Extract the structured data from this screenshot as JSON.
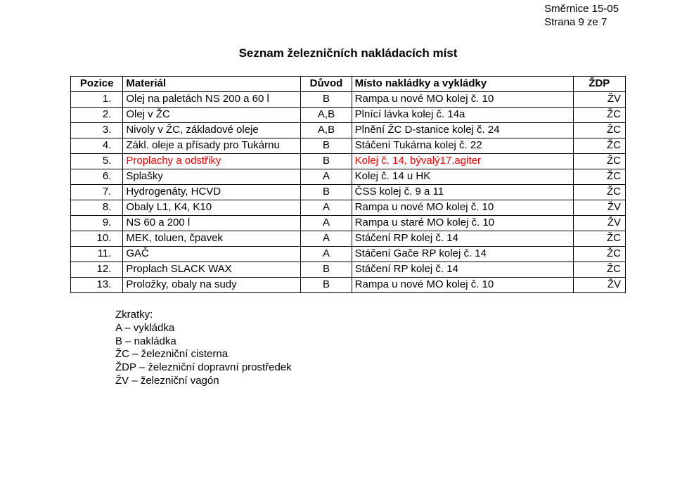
{
  "header": {
    "line1": "Směrnice 15-05",
    "line2": "Strana 9 ze 7"
  },
  "title": "Seznam železničních nakládacích míst",
  "table": {
    "headers": {
      "pozice": "Pozice",
      "material": "Materiál",
      "duvod": "Důvod",
      "misto": "Místo nakládky a vykládky",
      "zdp": "ŽDP"
    },
    "rows": [
      {
        "n": "1.",
        "material": "Olej na paletách NS 200 a 60 l",
        "duvod": "B",
        "misto": "Rampa u nové MO kolej č. 10",
        "zdp": "ŽV",
        "red": false
      },
      {
        "n": "2.",
        "material": "Olej v ŽC",
        "duvod": "A,B",
        "misto": "Plnící lávka kolej č. 14a",
        "zdp": "ŽC",
        "red": false
      },
      {
        "n": "3.",
        "material": "Nivoly v ŽC, základové oleje",
        "duvod": "A,B",
        "misto": "Plnění ŽC D-stanice kolej č. 24",
        "zdp": "ŽC",
        "red": false
      },
      {
        "n": "4.",
        "material": "Zákl. oleje a přísady pro Tukárnu",
        "duvod": "B",
        "misto": "Stáčení Tukárna kolej č. 22",
        "zdp": "ŽC",
        "red": false
      },
      {
        "n": "5.",
        "material": "Proplachy a odstřiky",
        "duvod": "B",
        "misto": "Kolej č. 14, bývalý17.agiter",
        "zdp": "ŽC",
        "red": true
      },
      {
        "n": "6.",
        "material": "Splašky",
        "duvod": "A",
        "misto": "Kolej č. 14 u HK",
        "zdp": "ŽC",
        "red": false
      },
      {
        "n": "7.",
        "material": "Hydrogenáty, HCVD",
        "duvod": "B",
        "misto": "ČSS kolej č. 9 a 11",
        "zdp": "ŽC",
        "red": false
      },
      {
        "n": "8.",
        "material": "Obaly L1, K4, K10",
        "duvod": "A",
        "misto": "Rampa u nové MO kolej č. 10",
        "zdp": "ŽV",
        "red": false
      },
      {
        "n": "9.",
        "material": "NS 60 a 200 l",
        "duvod": "A",
        "misto": "Rampa u staré MO kolej č. 10",
        "zdp": "ŽV",
        "red": false
      },
      {
        "n": "10.",
        "material": "MEK, toluen, čpavek",
        "duvod": "A",
        "misto": "Stáčení RP kolej č. 14",
        "zdp": "ŽC",
        "red": false
      },
      {
        "n": "11.",
        "material": "GAČ",
        "duvod": "A",
        "misto": "Stáčení Gače RP kolej č. 14",
        "zdp": "ŽC",
        "red": false
      },
      {
        "n": "12.",
        "material": "Proplach SLACK WAX",
        "duvod": "B",
        "misto": "Stáčení RP kolej č. 14",
        "zdp": "ŽC",
        "red": false
      },
      {
        "n": "13.",
        "material": "Proložky, obaly na sudy",
        "duvod": "B",
        "misto": "Rampa u nové MO kolej č. 10",
        "zdp": "ŽV",
        "red": false
      }
    ]
  },
  "abbrev": {
    "title": "Zkratky:",
    "lines": [
      "A – vykládka",
      "B – nakládka",
      "ŽC – železniční cisterna",
      "ŽDP – železniční dopravní prostředek",
      "ŽV – železniční vagón"
    ]
  }
}
